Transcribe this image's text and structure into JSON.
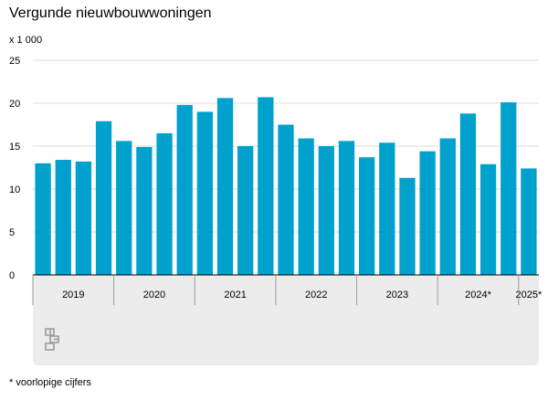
{
  "title": "Vergunde nieuwbouwwoningen",
  "unit_label": "x 1 000",
  "footnote": "* voorlopige cijfers",
  "logo": {
    "icon": "cbs-logo-icon"
  },
  "colors": {
    "bar": "#00a1cd",
    "grid": "#dcdcdc",
    "axis": "#000000",
    "band": "#ececec"
  },
  "chart_data": {
    "type": "bar",
    "title": "Vergunde nieuwbouwwoningen",
    "ylabel": "x 1 000",
    "xlabel": "",
    "ylim": [
      0,
      25
    ],
    "yticks": [
      0,
      5,
      10,
      15,
      20,
      25
    ],
    "grid": true,
    "categories": [
      "2019 Q1",
      "2019 Q2",
      "2019 Q3",
      "2019 Q4",
      "2020 Q1",
      "2020 Q2",
      "2020 Q3",
      "2020 Q4",
      "2021 Q1",
      "2021 Q2",
      "2021 Q3",
      "2021 Q4",
      "2022 Q1",
      "2022 Q2",
      "2022 Q3",
      "2022 Q4",
      "2023 Q1",
      "2023 Q2",
      "2023 Q3",
      "2023 Q4",
      "2024 Q1",
      "2024 Q2",
      "2024 Q3",
      "2024 Q4",
      "2025 Q1"
    ],
    "values": [
      13.0,
      13.4,
      13.2,
      17.9,
      15.6,
      14.9,
      16.5,
      19.8,
      19.0,
      20.6,
      15.0,
      20.7,
      17.5,
      15.9,
      15.0,
      15.6,
      13.7,
      15.4,
      11.3,
      14.4,
      15.9,
      18.8,
      12.9,
      20.1,
      12.4
    ],
    "year_labels": [
      "2019",
      "2020",
      "2021",
      "2022",
      "2023",
      "2024*",
      "2025*"
    ],
    "year_quarters": [
      4,
      4,
      4,
      4,
      4,
      4,
      1
    ]
  }
}
